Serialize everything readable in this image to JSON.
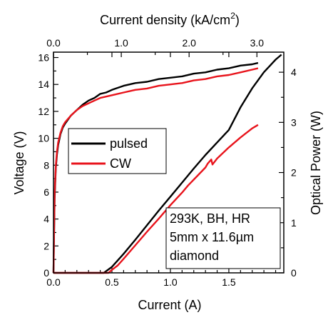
{
  "chart_data": {
    "type": "line",
    "xlabel": "Current (A)",
    "x2label": "Current density (kA/cm",
    "x2label_sup": "2",
    "x2label_end": ")",
    "ylabel": "Voltage (V)",
    "y2label": "Optical Power (W)",
    "xlim": [
      0,
      1.97
    ],
    "ylim": [
      0,
      16.4
    ],
    "y2lim": [
      0,
      4.4
    ],
    "x2_factor": 1.724,
    "x_ticks": [
      "0.0",
      "0.5",
      "1.0",
      "1.5"
    ],
    "x_tick_values": [
      0,
      0.5,
      1.0,
      1.5
    ],
    "x2_ticks": [
      "0.0",
      "1.0",
      "2.0",
      "3.0"
    ],
    "x2_tick_values": [
      0,
      1.0,
      2.0,
      3.0
    ],
    "y_ticks": [
      "0",
      "2",
      "4",
      "6",
      "8",
      "10",
      "12",
      "14",
      "16"
    ],
    "y_tick_values": [
      0,
      2,
      4,
      6,
      8,
      10,
      12,
      14,
      16
    ],
    "y2_ticks": [
      "0",
      "1",
      "2",
      "3",
      "4"
    ],
    "y2_tick_values": [
      0,
      1,
      2,
      3,
      4
    ],
    "legend": {
      "placement": "left-middle",
      "entries": [
        {
          "label": "pulsed",
          "color": "#000000"
        },
        {
          "label": "CW",
          "color": "#e8141c"
        }
      ]
    },
    "annotation": [
      "293K, BH, HR",
      "5mm x 11.6µm",
      "diamond"
    ],
    "series": [
      {
        "name": "pulsed",
        "color": "#000000",
        "axis": "left",
        "x": [
          0,
          0.01,
          0.02,
          0.03,
          0.04,
          0.06,
          0.08,
          0.1,
          0.15,
          0.2,
          0.25,
          0.3,
          0.35,
          0.4,
          0.45,
          0.5,
          0.6,
          0.7,
          0.8,
          0.9,
          1.0,
          1.1,
          1.2,
          1.3,
          1.4,
          1.5,
          1.6,
          1.7,
          1.75
        ],
        "y": [
          0,
          5.5,
          7.8,
          8.8,
          9.5,
          10.3,
          10.8,
          11.1,
          11.7,
          12.1,
          12.5,
          12.8,
          13.0,
          13.3,
          13.4,
          13.6,
          13.9,
          14.1,
          14.2,
          14.4,
          14.5,
          14.6,
          14.8,
          14.9,
          15.1,
          15.2,
          15.4,
          15.5,
          15.6
        ]
      },
      {
        "name": "CW",
        "color": "#e8141c",
        "axis": "left",
        "x": [
          0,
          0.01,
          0.02,
          0.03,
          0.04,
          0.06,
          0.08,
          0.1,
          0.15,
          0.2,
          0.25,
          0.3,
          0.35,
          0.4,
          0.45,
          0.5,
          0.6,
          0.7,
          0.8,
          0.9,
          1.0,
          1.1,
          1.2,
          1.3,
          1.4,
          1.5,
          1.6,
          1.7,
          1.75
        ],
        "y": [
          0,
          5.8,
          8.0,
          9.0,
          9.7,
          10.4,
          10.9,
          11.2,
          11.7,
          12.1,
          12.4,
          12.6,
          12.8,
          13.0,
          13.1,
          13.2,
          13.4,
          13.6,
          13.7,
          13.9,
          14.0,
          14.1,
          14.3,
          14.4,
          14.6,
          14.7,
          14.9,
          15.1,
          15.2
        ]
      },
      {
        "name": "pulsed",
        "color": "#000000",
        "axis": "right",
        "x": [
          0,
          0.43,
          0.46,
          0.5,
          0.6,
          0.7,
          0.8,
          0.9,
          1.0,
          1.1,
          1.2,
          1.3,
          1.4,
          1.5,
          1.6,
          1.7,
          1.8,
          1.9,
          1.95
        ],
        "y": [
          0,
          0,
          0.05,
          0.12,
          0.38,
          0.66,
          0.95,
          1.24,
          1.52,
          1.8,
          2.08,
          2.35,
          2.6,
          2.85,
          3.3,
          3.68,
          4.0,
          4.25,
          4.35
        ]
      },
      {
        "name": "CW",
        "color": "#e8141c",
        "axis": "right",
        "x": [
          0,
          0.47,
          0.5,
          0.55,
          0.6,
          0.7,
          0.8,
          0.9,
          1.0,
          1.1,
          1.15,
          1.2,
          1.25,
          1.3,
          1.32,
          1.35,
          1.36,
          1.4,
          1.5,
          1.6,
          1.7,
          1.75
        ],
        "y": [
          0,
          0,
          0.06,
          0.15,
          0.28,
          0.55,
          0.82,
          1.08,
          1.35,
          1.6,
          1.74,
          1.86,
          1.98,
          2.1,
          2.18,
          2.26,
          2.16,
          2.28,
          2.5,
          2.7,
          2.88,
          2.95
        ]
      }
    ]
  }
}
